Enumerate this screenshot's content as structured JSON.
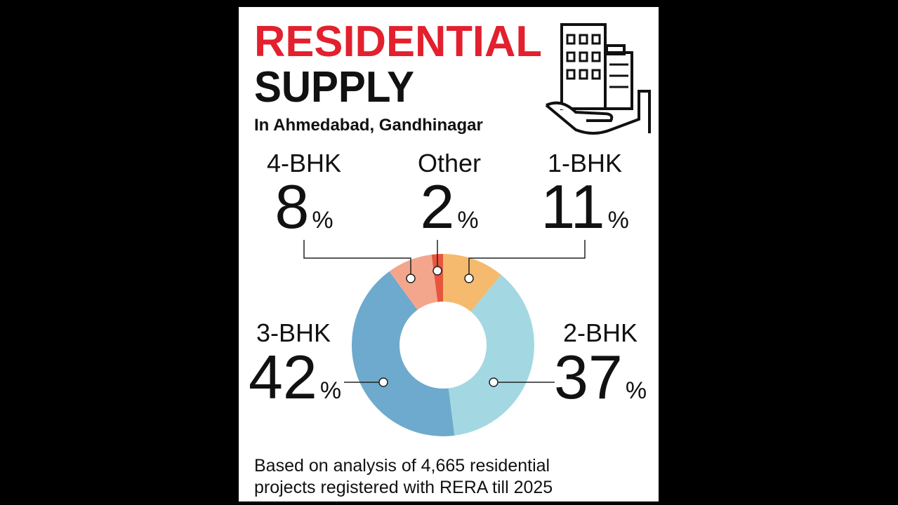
{
  "chart_data": {
    "type": "donut",
    "title": [
      "RESIDENTIAL",
      "SUPPLY"
    ],
    "subtitle": "In Ahmedabad, Gandhinagar",
    "categories": [
      "1-BHK",
      "2-BHK",
      "3-BHK",
      "4-BHK",
      "Other"
    ],
    "values": [
      11,
      37,
      42,
      8,
      2
    ],
    "value_labels": [
      "11%",
      "37%",
      "42%",
      "8%",
      "2%"
    ],
    "colors": [
      "#f5ba6e",
      "#a3d8e2",
      "#6daacd",
      "#f4a68c",
      "#e8553f"
    ],
    "note": [
      "Based on analysis of 4,665 residential",
      "projects registered with RERA till 2025"
    ]
  }
}
